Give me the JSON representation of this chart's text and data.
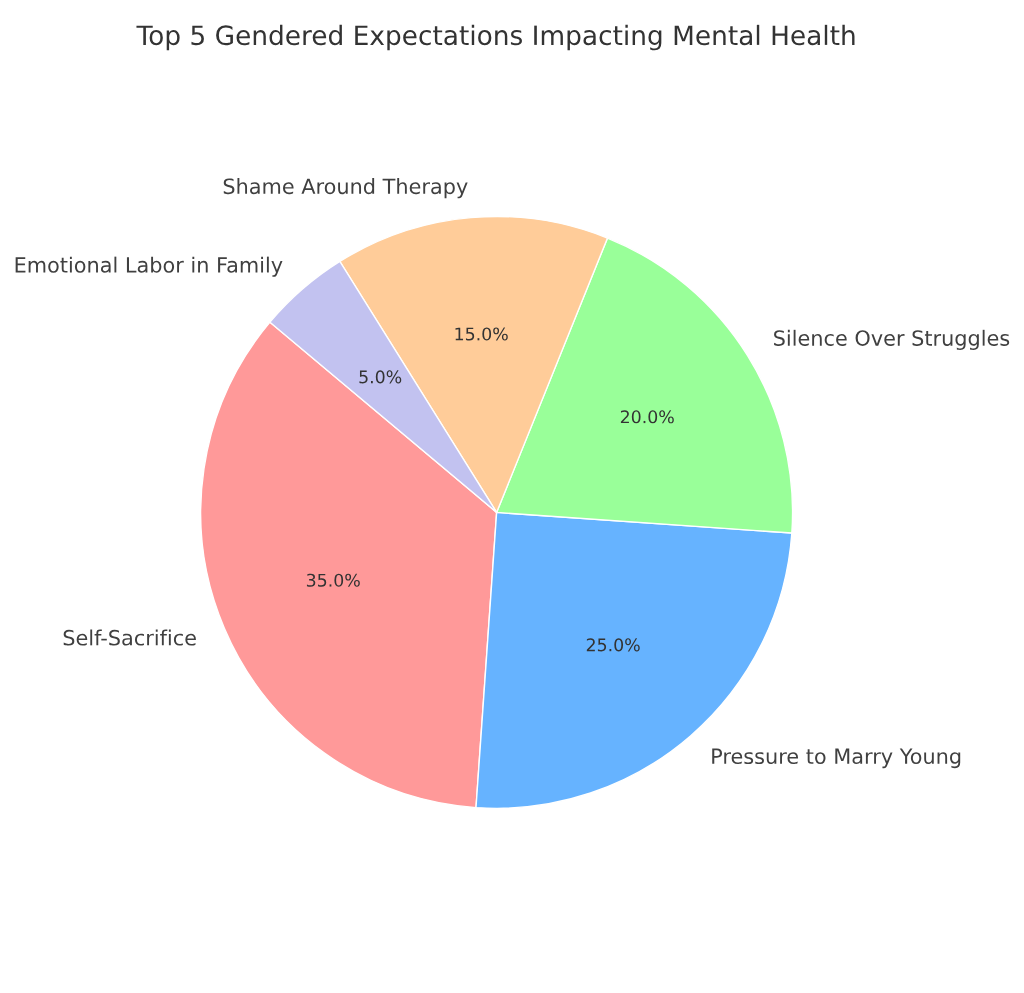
{
  "chart_data": {
    "type": "pie",
    "title": "Top 5 Gendered Expectations Impacting Mental Health",
    "categories": [
      "Self-Sacrifice",
      "Pressure to Marry Young",
      "Silence Over Struggles",
      "Shame Around Therapy",
      "Emotional Labor in Family"
    ],
    "values": [
      35,
      25,
      20,
      15,
      5
    ],
    "colors": [
      "#ff9999",
      "#66b3ff",
      "#99ff99",
      "#ffcc99",
      "#c2c2f0"
    ],
    "value_labels": [
      "35.0%",
      "25.0%",
      "20.0%",
      "15.0%",
      "5.0%"
    ]
  }
}
